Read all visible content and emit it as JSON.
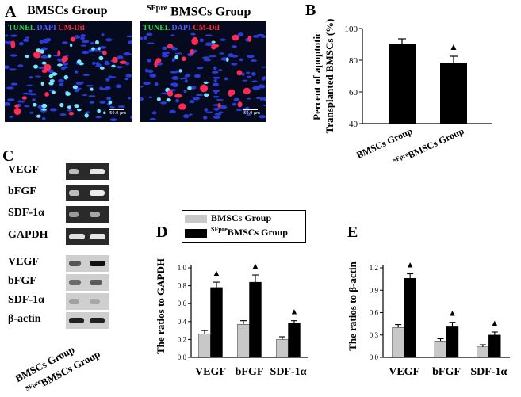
{
  "panel_a": {
    "letter": "A",
    "left_title": "BMSCs Group",
    "right_title_sup": "SFpre",
    "right_title": " BMSCs Group",
    "stain_tunel": "TUNEL",
    "stain_dapi": "DAPI",
    "stain_cmdil": "CM-DiI",
    "scale_label": "50.0 µm"
  },
  "panel_b_letter": "B",
  "panel_c": {
    "letter": "C",
    "rows": [
      "VEGF",
      "bFGF",
      "SDF-1α",
      "GAPDH",
      "VEGF",
      "bFGF",
      "SDF-1α",
      "β-actin"
    ],
    "lane1": "BMSCs Group",
    "lane2_sup": "SFpre",
    "lane2": "BMSCs Group"
  },
  "panel_d_letter": "D",
  "panel_e_letter": "E",
  "legend": {
    "s1": "BMSCs Group",
    "s2_sup": "SFpre",
    "s2": "BMSCs Group"
  },
  "chart_data": [
    {
      "type": "bar",
      "panel": "B",
      "categories": [
        "BMSCs Group",
        "SFpreBMSCs Group"
      ],
      "category_sup": [
        "",
        "SFpre"
      ],
      "category_main": [
        "BMSCs Group",
        "BMSCs Group"
      ],
      "values": [
        90,
        78.5
      ],
      "errors": [
        3.5,
        4
      ],
      "ylabel": [
        "Percent of apoptotic",
        "Transplanted BMSCs (%)"
      ],
      "ylim": [
        40,
        100
      ],
      "yticks": [
        40,
        60,
        80,
        100
      ],
      "markers": [
        "",
        "▲"
      ],
      "colors": [
        "#000000",
        "#000000"
      ]
    },
    {
      "type": "bar",
      "panel": "D",
      "categories": [
        "VEGF",
        "bFGF",
        "SDF-1α"
      ],
      "series": [
        {
          "name": "BMSCs Group",
          "values": [
            0.26,
            0.37,
            0.2
          ],
          "errors": [
            0.04,
            0.04,
            0.03
          ],
          "color": "#c8c8c8"
        },
        {
          "name": "SFpreBMSCs Group",
          "values": [
            0.78,
            0.84,
            0.38
          ],
          "errors": [
            0.06,
            0.08,
            0.03
          ],
          "color": "#000000"
        }
      ],
      "markers": [
        "▲",
        "▲",
        "▲"
      ],
      "ylabel": "The ratios to GAPDH",
      "ylim": [
        0,
        1.0
      ],
      "yticks": [
        "0.0",
        "0.2",
        "0.4",
        "0.6",
        "0.8",
        "1.0"
      ]
    },
    {
      "type": "bar",
      "panel": "E",
      "categories": [
        "VEGF",
        "bFGF",
        "SDF-1α"
      ],
      "series": [
        {
          "name": "BMSCs Group",
          "values": [
            0.4,
            0.22,
            0.14
          ],
          "errors": [
            0.04,
            0.03,
            0.03
          ],
          "color": "#c8c8c8"
        },
        {
          "name": "SFpreBMSCs Group",
          "values": [
            1.06,
            0.41,
            0.3
          ],
          "errors": [
            0.06,
            0.06,
            0.04
          ],
          "color": "#000000"
        }
      ],
      "markers": [
        "▲",
        "▲",
        "▲"
      ],
      "ylabel": "The ratios to β-actin",
      "ylim": [
        0,
        1.2
      ],
      "yticks": [
        "0.0",
        "0.3",
        "0.6",
        "0.9",
        "1.2"
      ]
    }
  ]
}
